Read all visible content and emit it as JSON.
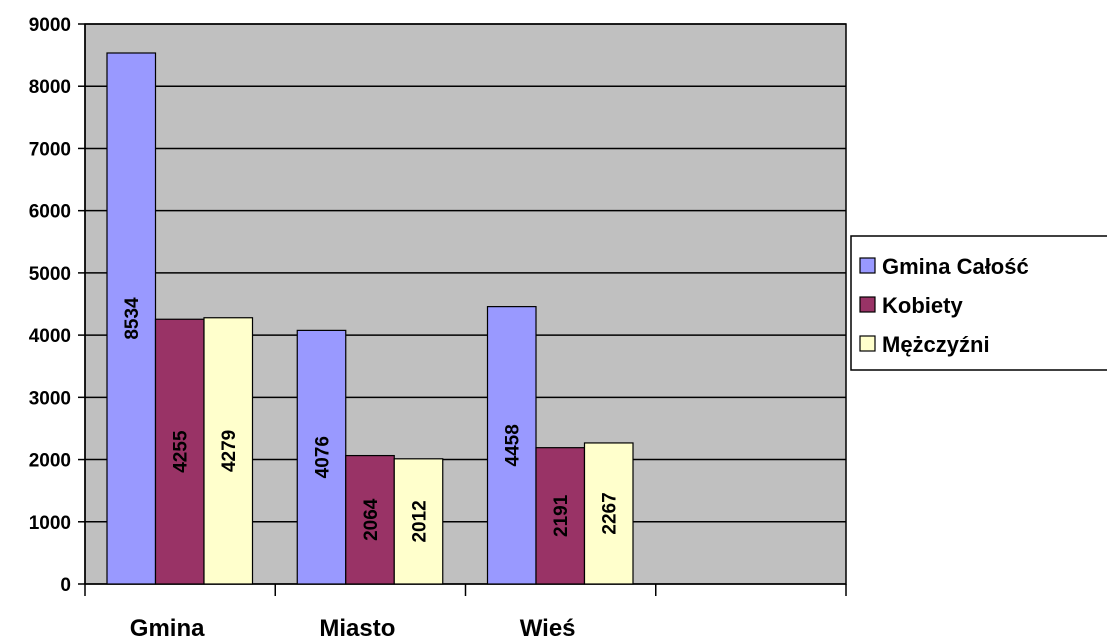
{
  "chart_data": {
    "type": "bar",
    "categories": [
      "Gmina",
      "Miasto",
      "Wieś",
      ""
    ],
    "series": [
      {
        "name": "Gmina Całość",
        "values": [
          8534,
          4076,
          4458,
          null
        ],
        "color": "#9999ff"
      },
      {
        "name": "Kobiety",
        "values": [
          4255,
          2064,
          2191,
          null
        ],
        "color": "#993366"
      },
      {
        "name": "Mężczyźni",
        "values": [
          4279,
          2012,
          2267,
          null
        ],
        "color": "#ffffcc"
      }
    ],
    "ylim": [
      0,
      9000
    ],
    "yticks": [
      0,
      1000,
      2000,
      3000,
      4000,
      5000,
      6000,
      7000,
      8000,
      9000
    ],
    "grid": true,
    "plot_background": "#c0c0c0",
    "legend_position": "right",
    "data_labels": "inside-rotated"
  }
}
